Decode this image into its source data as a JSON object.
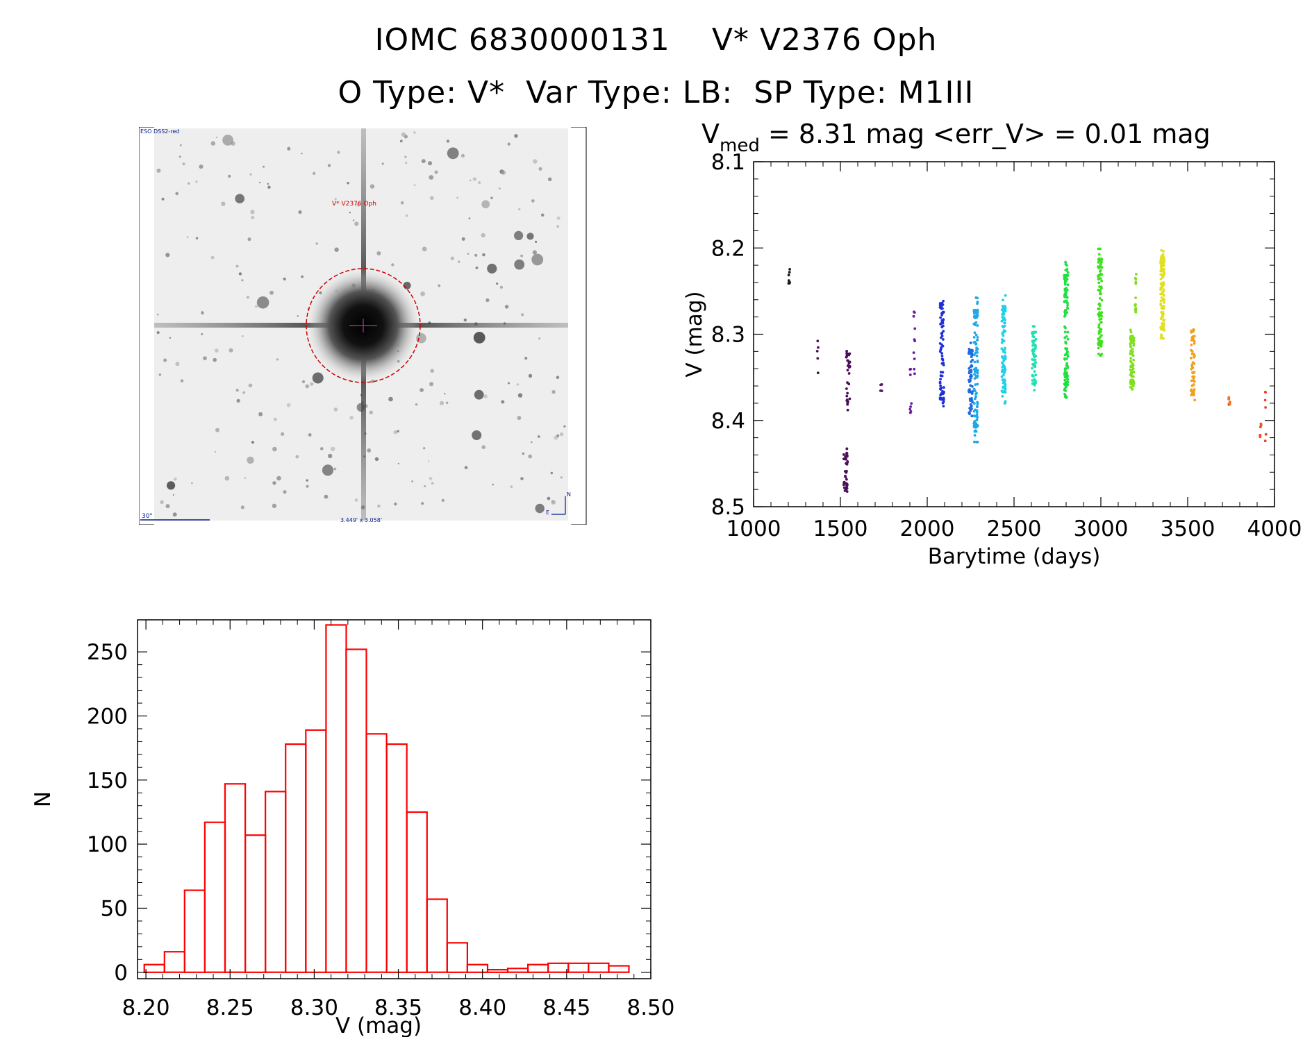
{
  "header": {
    "id_label": "IOMC 6830000131",
    "star_name": "V* V2376 Oph",
    "otype": "O Type: V*",
    "vartype": "Var Type: LB:",
    "sptype": "SP Type: M1III"
  },
  "finder_image": {
    "source_label": "ESO DSS2-red",
    "target_label": "V* V2376 Oph",
    "scale_label": "30\"",
    "fov_label": "3.449' x 3.058'",
    "north_label": "N",
    "east_label": "E"
  },
  "colors": {
    "histogram": "#ff0000",
    "axes": "#000000",
    "circle": "#cc0000"
  },
  "chart_data": [
    {
      "type": "scatter",
      "title_prefix": "V",
      "title_sub": "med",
      "title_rest": " = 8.31 mag <err_V> = 0.01 mag",
      "xlabel": "Barytime (days)",
      "ylabel": "V (mag)",
      "xlim": [
        1000,
        4000
      ],
      "ylim": [
        8.1,
        8.5
      ],
      "y_inverted": true,
      "xticks": [
        1000,
        1500,
        2000,
        2500,
        3000,
        3500,
        4000
      ],
      "xtick_labels": [
        "1000",
        "1500",
        "2000",
        "2500",
        "3000",
        "3500",
        "4000"
      ],
      "yticks": [
        8.1,
        8.2,
        8.3,
        8.4,
        8.5
      ],
      "ytick_labels": [
        "8.1",
        "8.2",
        "8.3",
        "8.4",
        "8.5"
      ],
      "clusters": [
        {
          "t": 1205,
          "vmin": 8.222,
          "vmax": 8.243,
          "n": 8,
          "color": "#1a1a1a"
        },
        {
          "t": 1370,
          "vmin": 8.303,
          "vmax": 8.345,
          "n": 5,
          "color": "#4b1550"
        },
        {
          "t": 1530,
          "vmin": 8.432,
          "vmax": 8.488,
          "n": 40,
          "color": "#4a0f5a"
        },
        {
          "t": 1545,
          "vmin": 8.315,
          "vmax": 8.388,
          "n": 35,
          "color": "#4a0f5a"
        },
        {
          "t": 1735,
          "vmin": 8.358,
          "vmax": 8.375,
          "n": 4,
          "color": "#5a1a70"
        },
        {
          "t": 1905,
          "vmin": 8.33,
          "vmax": 8.398,
          "n": 8,
          "color": "#6a1a9a"
        },
        {
          "t": 1925,
          "vmin": 8.265,
          "vmax": 8.355,
          "n": 10,
          "color": "#6a1aa8"
        },
        {
          "t": 2085,
          "vmin": 8.25,
          "vmax": 8.39,
          "n": 90,
          "color": "#2030d8"
        },
        {
          "t": 2250,
          "vmin": 8.31,
          "vmax": 8.395,
          "n": 70,
          "color": "#1e6ce0"
        },
        {
          "t": 2280,
          "vmin": 8.255,
          "vmax": 8.425,
          "n": 120,
          "color": "#1ea8e8"
        },
        {
          "t": 2440,
          "vmin": 8.255,
          "vmax": 8.38,
          "n": 110,
          "color": "#20d0e8"
        },
        {
          "t": 2615,
          "vmin": 8.29,
          "vmax": 8.365,
          "n": 70,
          "color": "#20e0b0"
        },
        {
          "t": 2800,
          "vmin": 8.215,
          "vmax": 8.375,
          "n": 130,
          "color": "#20e040"
        },
        {
          "t": 2995,
          "vmin": 8.2,
          "vmax": 8.325,
          "n": 110,
          "color": "#40e020"
        },
        {
          "t": 3180,
          "vmin": 8.295,
          "vmax": 8.365,
          "n": 80,
          "color": "#80e020"
        },
        {
          "t": 3200,
          "vmin": 8.23,
          "vmax": 8.28,
          "n": 15,
          "color": "#80e020"
        },
        {
          "t": 3355,
          "vmin": 8.2,
          "vmax": 8.305,
          "n": 130,
          "color": "#e0e020"
        },
        {
          "t": 3530,
          "vmin": 8.285,
          "vmax": 8.38,
          "n": 60,
          "color": "#f0a020"
        },
        {
          "t": 3740,
          "vmin": 8.372,
          "vmax": 8.385,
          "n": 6,
          "color": "#f07020"
        },
        {
          "t": 3920,
          "vmin": 8.395,
          "vmax": 8.425,
          "n": 6,
          "color": "#f05020"
        },
        {
          "t": 3950,
          "vmin": 8.36,
          "vmax": 8.425,
          "n": 6,
          "color": "#f04020"
        }
      ]
    },
    {
      "type": "bar",
      "subtype": "histogram",
      "xlabel": "V (mag)",
      "ylabel": "N",
      "xlim": [
        8.195,
        8.5
      ],
      "ylim": [
        -5,
        275
      ],
      "bin_width": 0.012,
      "bin_start": 8.199,
      "values": [
        6,
        16,
        64,
        117,
        147,
        107,
        141,
        178,
        189,
        271,
        252,
        186,
        178,
        125,
        57,
        23,
        6,
        2,
        3,
        6,
        7,
        7,
        7,
        5
      ],
      "xticks": [
        8.2,
        8.25,
        8.3,
        8.35,
        8.4,
        8.45,
        8.5
      ],
      "xtick_labels": [
        "8.20",
        "8.25",
        "8.30",
        "8.35",
        "8.40",
        "8.45",
        "8.50"
      ],
      "yticks": [
        0,
        50,
        100,
        150,
        200,
        250
      ],
      "ytick_labels": [
        "0",
        "50",
        "100",
        "150",
        "200",
        "250"
      ]
    }
  ]
}
